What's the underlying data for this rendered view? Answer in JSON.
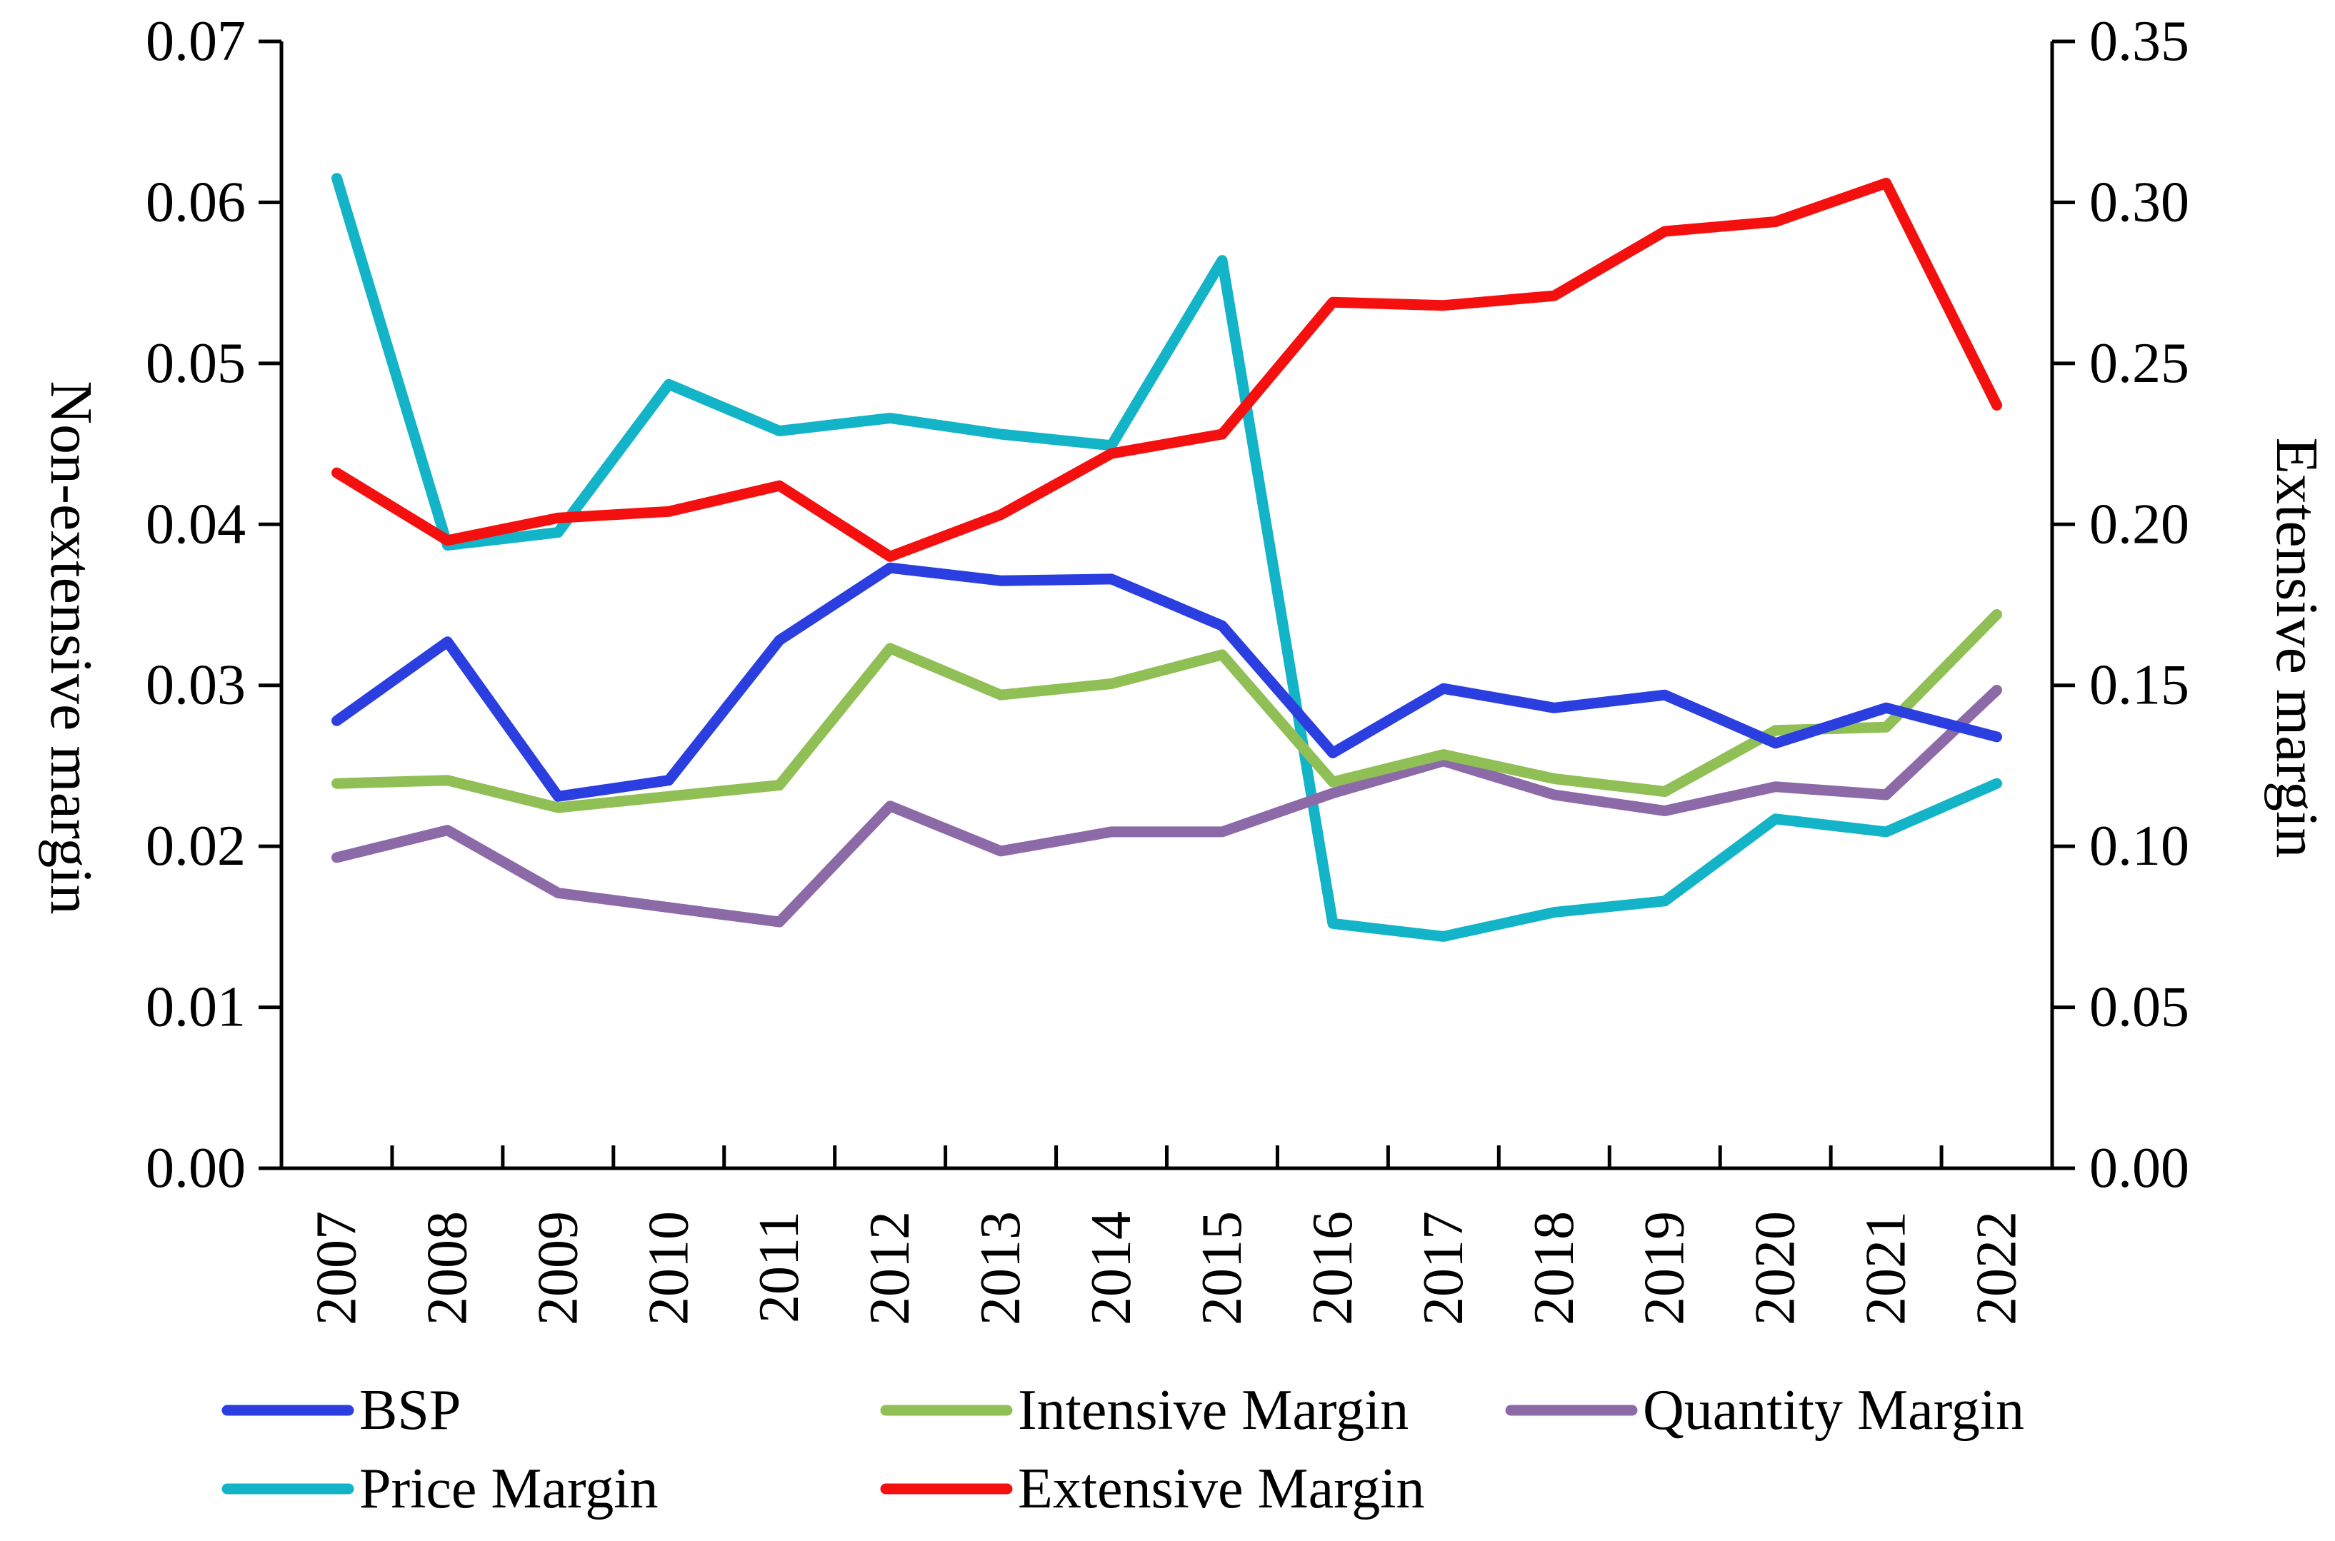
{
  "chart_data": {
    "type": "line",
    "categories": [
      "2007",
      "2008",
      "2009",
      "2010",
      "2011",
      "2012",
      "2013",
      "2014",
      "2015",
      "2016",
      "2017",
      "2018",
      "2019",
      "2020",
      "2021",
      "2022"
    ],
    "y_left": {
      "label": "Non-extensive margin",
      "ylim": [
        0,
        0.07
      ],
      "ticks": [
        "0.00",
        "0.01",
        "0.02",
        "0.03",
        "0.04",
        "0.05",
        "0.06",
        "0.07"
      ]
    },
    "y_right": {
      "label": "Extensive margin",
      "ylim": [
        0,
        0.35
      ],
      "ticks": [
        "0.00",
        "0.05",
        "0.10",
        "0.15",
        "0.20",
        "0.25",
        "0.30",
        "0.35"
      ]
    },
    "grid": false,
    "legend_position": "bottom",
    "series": [
      {
        "name": "BSP",
        "axis": "left",
        "color": "#2b3ee0",
        "values": [
          0.0278,
          0.0327,
          0.0231,
          0.0241,
          0.0328,
          0.0373,
          0.0365,
          0.0366,
          0.0337,
          0.0258,
          0.0298,
          0.0286,
          0.0294,
          0.0264,
          0.0286,
          0.0268
        ]
      },
      {
        "name": "Intensive Margin",
        "axis": "left",
        "color": "#8fbf55",
        "values": [
          0.0239,
          0.0241,
          0.0224,
          0.0231,
          0.0238,
          0.0323,
          0.0294,
          0.0301,
          0.0319,
          0.024,
          0.0257,
          0.0242,
          0.0234,
          0.0272,
          0.0274,
          0.0344
        ]
      },
      {
        "name": "Quantity Margin",
        "axis": "left",
        "color": "#8c6aa8",
        "values": [
          0.0193,
          0.021,
          0.0171,
          0.0162,
          0.0153,
          0.0225,
          0.0197,
          0.0209,
          0.0209,
          0.0233,
          0.0253,
          0.0232,
          0.0222,
          0.0237,
          0.0232,
          0.0297
        ]
      },
      {
        "name": "Price Margin",
        "axis": "left",
        "color": "#14b4c8",
        "values": [
          0.0615,
          0.0387,
          0.0395,
          0.0487,
          0.0458,
          0.0466,
          0.0456,
          0.0449,
          0.0564,
          0.0152,
          0.0144,
          0.0159,
          0.0166,
          0.0217,
          0.0209,
          0.0239
        ]
      },
      {
        "name": "Extensive Margin",
        "axis": "right",
        "color": "#f51010",
        "values": [
          0.216,
          0.195,
          0.202,
          0.204,
          0.212,
          0.19,
          0.203,
          0.222,
          0.228,
          0.269,
          0.268,
          0.271,
          0.291,
          0.294,
          0.306,
          0.237
        ]
      }
    ]
  }
}
